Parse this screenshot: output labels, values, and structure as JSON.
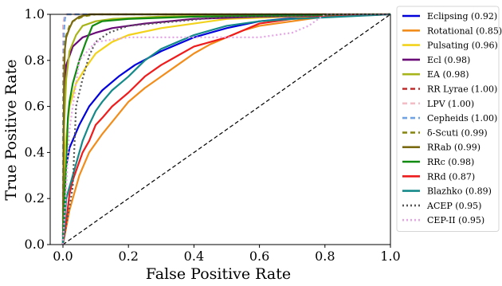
{
  "chart_data": {
    "type": "line",
    "title": "",
    "xlabel": "False Positive Rate",
    "ylabel": "True Positive Rate",
    "xlim": [
      0.0,
      1.0
    ],
    "ylim": [
      0.0,
      1.0
    ],
    "xticks": [
      "0.0",
      "0.2",
      "0.4",
      "0.6",
      "0.8",
      "1.0"
    ],
    "yticks": [
      "0.0",
      "0.2",
      "0.4",
      "0.6",
      "0.8",
      "1.0"
    ],
    "grid": false,
    "legend_position": "right (outside plot)",
    "diagonal_reference": {
      "style": "black dashed",
      "points": [
        [
          0,
          0
        ],
        [
          1,
          1
        ]
      ]
    },
    "series": [
      {
        "name": "Eclipsing (0.92)",
        "color": "#0000dd",
        "dash": "solid",
        "points": [
          [
            0,
            0
          ],
          [
            0.005,
            0.3
          ],
          [
            0.02,
            0.42
          ],
          [
            0.05,
            0.52
          ],
          [
            0.08,
            0.6
          ],
          [
            0.12,
            0.67
          ],
          [
            0.17,
            0.73
          ],
          [
            0.22,
            0.78
          ],
          [
            0.3,
            0.84
          ],
          [
            0.4,
            0.9
          ],
          [
            0.5,
            0.94
          ],
          [
            0.6,
            0.97
          ],
          [
            0.75,
            0.99
          ],
          [
            1,
            1
          ]
        ]
      },
      {
        "name": "Rotational (0.85)",
        "color": "#f28c1a",
        "dash": "solid",
        "points": [
          [
            0,
            0
          ],
          [
            0.02,
            0.15
          ],
          [
            0.05,
            0.3
          ],
          [
            0.08,
            0.4
          ],
          [
            0.12,
            0.48
          ],
          [
            0.16,
            0.55
          ],
          [
            0.2,
            0.62
          ],
          [
            0.25,
            0.68
          ],
          [
            0.3,
            0.73
          ],
          [
            0.35,
            0.78
          ],
          [
            0.4,
            0.83
          ],
          [
            0.45,
            0.87
          ],
          [
            0.5,
            0.9
          ],
          [
            0.55,
            0.93
          ],
          [
            0.6,
            0.95
          ],
          [
            0.7,
            0.97
          ],
          [
            0.8,
            0.99
          ],
          [
            1,
            1
          ]
        ]
      },
      {
        "name": "Pulsating (0.96)",
        "color": "#f2d21a",
        "dash": "solid",
        "points": [
          [
            0,
            0
          ],
          [
            0.005,
            0.4
          ],
          [
            0.02,
            0.6
          ],
          [
            0.04,
            0.7
          ],
          [
            0.07,
            0.77
          ],
          [
            0.1,
            0.83
          ],
          [
            0.15,
            0.88
          ],
          [
            0.2,
            0.91
          ],
          [
            0.3,
            0.94
          ],
          [
            0.4,
            0.96
          ],
          [
            0.5,
            0.98
          ],
          [
            0.7,
            0.99
          ],
          [
            1,
            1
          ]
        ]
      },
      {
        "name": "Ecl (0.98)",
        "color": "#6a0a78",
        "dash": "solid",
        "points": [
          [
            0,
            0
          ],
          [
            0.003,
            0.6
          ],
          [
            0.01,
            0.78
          ],
          [
            0.03,
            0.86
          ],
          [
            0.06,
            0.9
          ],
          [
            0.1,
            0.92
          ],
          [
            0.15,
            0.94
          ],
          [
            0.25,
            0.96
          ],
          [
            0.4,
            0.98
          ],
          [
            0.6,
            0.99
          ],
          [
            1,
            1
          ]
        ]
      },
      {
        "name": "EA (0.98)",
        "color": "#a7b51a",
        "dash": "solid",
        "points": [
          [
            0,
            0
          ],
          [
            0.003,
            0.5
          ],
          [
            0.01,
            0.72
          ],
          [
            0.02,
            0.84
          ],
          [
            0.04,
            0.91
          ],
          [
            0.06,
            0.95
          ],
          [
            0.1,
            0.97
          ],
          [
            0.15,
            0.98
          ],
          [
            0.3,
            0.99
          ],
          [
            0.5,
            0.995
          ],
          [
            1,
            1
          ]
        ]
      },
      {
        "name": "RR Lyrae (1.00)",
        "color": "#c42a2a",
        "dash": "dash",
        "points": [
          [
            0,
            0
          ],
          [
            0.001,
            0.96
          ],
          [
            0.005,
            0.99
          ],
          [
            0.01,
            1.0
          ],
          [
            1,
            1
          ]
        ]
      },
      {
        "name": "LPV (1.00)",
        "color": "#f4bcc4",
        "dash": "dash",
        "points": [
          [
            0,
            0
          ],
          [
            0.001,
            0.95
          ],
          [
            0.004,
            0.99
          ],
          [
            0.008,
            1.0
          ],
          [
            1,
            1
          ]
        ]
      },
      {
        "name": "Cepheids (1.00)",
        "color": "#6fa3e8",
        "dash": "dash",
        "points": [
          [
            0,
            0
          ],
          [
            0.0,
            0.5
          ],
          [
            0.003,
            0.92
          ],
          [
            0.006,
            0.98
          ],
          [
            0.01,
            1.0
          ],
          [
            1,
            1
          ]
        ]
      },
      {
        "name": "δ-Scuti (0.99)",
        "color": "#8a8a12",
        "dash": "dash",
        "points": [
          [
            0,
            0
          ],
          [
            0.003,
            0.8
          ],
          [
            0.008,
            0.9
          ],
          [
            0.02,
            0.95
          ],
          [
            0.03,
            0.97
          ],
          [
            0.06,
            0.99
          ],
          [
            0.1,
            1.0
          ],
          [
            1,
            1
          ]
        ]
      },
      {
        "name": "RRab (0.99)",
        "color": "#7a6a12",
        "dash": "solid",
        "points": [
          [
            0,
            0
          ],
          [
            0.003,
            0.7
          ],
          [
            0.006,
            0.85
          ],
          [
            0.01,
            0.9
          ],
          [
            0.02,
            0.94
          ],
          [
            0.03,
            0.97
          ],
          [
            0.05,
            0.99
          ],
          [
            0.08,
            1.0
          ],
          [
            1,
            1
          ]
        ]
      },
      {
        "name": "RRc (0.98)",
        "color": "#118a11",
        "dash": "solid",
        "points": [
          [
            0,
            0
          ],
          [
            0.005,
            0.2
          ],
          [
            0.01,
            0.35
          ],
          [
            0.015,
            0.55
          ],
          [
            0.02,
            0.62
          ],
          [
            0.03,
            0.7
          ],
          [
            0.05,
            0.8
          ],
          [
            0.07,
            0.88
          ],
          [
            0.09,
            0.95
          ],
          [
            0.12,
            0.97
          ],
          [
            0.2,
            0.98
          ],
          [
            0.4,
            0.99
          ],
          [
            1,
            1
          ]
        ]
      },
      {
        "name": "RRd (0.87)",
        "color": "#ee1c1c",
        "dash": "solid",
        "points": [
          [
            0,
            0
          ],
          [
            0.01,
            0.1
          ],
          [
            0.02,
            0.22
          ],
          [
            0.03,
            0.28
          ],
          [
            0.04,
            0.32
          ],
          [
            0.06,
            0.4
          ],
          [
            0.08,
            0.45
          ],
          [
            0.1,
            0.52
          ],
          [
            0.12,
            0.55
          ],
          [
            0.15,
            0.6
          ],
          [
            0.2,
            0.66
          ],
          [
            0.25,
            0.73
          ],
          [
            0.3,
            0.78
          ],
          [
            0.35,
            0.82
          ],
          [
            0.4,
            0.86
          ],
          [
            0.45,
            0.88
          ],
          [
            0.5,
            0.9
          ],
          [
            0.55,
            0.93
          ],
          [
            0.6,
            0.96
          ],
          [
            0.7,
            0.98
          ],
          [
            0.8,
            0.99
          ],
          [
            1,
            1
          ]
        ]
      },
      {
        "name": "Blazhko (0.89)",
        "color": "#168a8a",
        "dash": "solid",
        "points": [
          [
            0,
            0
          ],
          [
            0.01,
            0.2
          ],
          [
            0.02,
            0.25
          ],
          [
            0.04,
            0.35
          ],
          [
            0.06,
            0.45
          ],
          [
            0.08,
            0.52
          ],
          [
            0.1,
            0.58
          ],
          [
            0.12,
            0.62
          ],
          [
            0.15,
            0.67
          ],
          [
            0.2,
            0.73
          ],
          [
            0.25,
            0.8
          ],
          [
            0.3,
            0.85
          ],
          [
            0.35,
            0.88
          ],
          [
            0.4,
            0.91
          ],
          [
            0.45,
            0.93
          ],
          [
            0.5,
            0.95
          ],
          [
            0.6,
            0.97
          ],
          [
            0.7,
            0.98
          ],
          [
            1,
            1
          ]
        ]
      },
      {
        "name": "ACEP (0.95)",
        "color": "#555555",
        "dash": "dot",
        "points": [
          [
            0,
            0
          ],
          [
            0.03,
            0.25
          ],
          [
            0.04,
            0.6
          ],
          [
            0.06,
            0.72
          ],
          [
            0.08,
            0.82
          ],
          [
            0.1,
            0.88
          ],
          [
            0.14,
            0.92
          ],
          [
            0.2,
            0.95
          ],
          [
            0.35,
            0.97
          ],
          [
            0.5,
            0.99
          ],
          [
            1,
            1
          ]
        ]
      },
      {
        "name": "CEP-II (0.95)",
        "color": "#e6a3e6",
        "dash": "dot",
        "points": [
          [
            0,
            0
          ],
          [
            0.02,
            0.5
          ],
          [
            0.05,
            0.8
          ],
          [
            0.1,
            0.88
          ],
          [
            0.2,
            0.9
          ],
          [
            0.4,
            0.9
          ],
          [
            0.6,
            0.9
          ],
          [
            0.7,
            0.92
          ],
          [
            0.75,
            0.95
          ],
          [
            0.8,
            1.0
          ],
          [
            1,
            1
          ]
        ]
      }
    ]
  }
}
